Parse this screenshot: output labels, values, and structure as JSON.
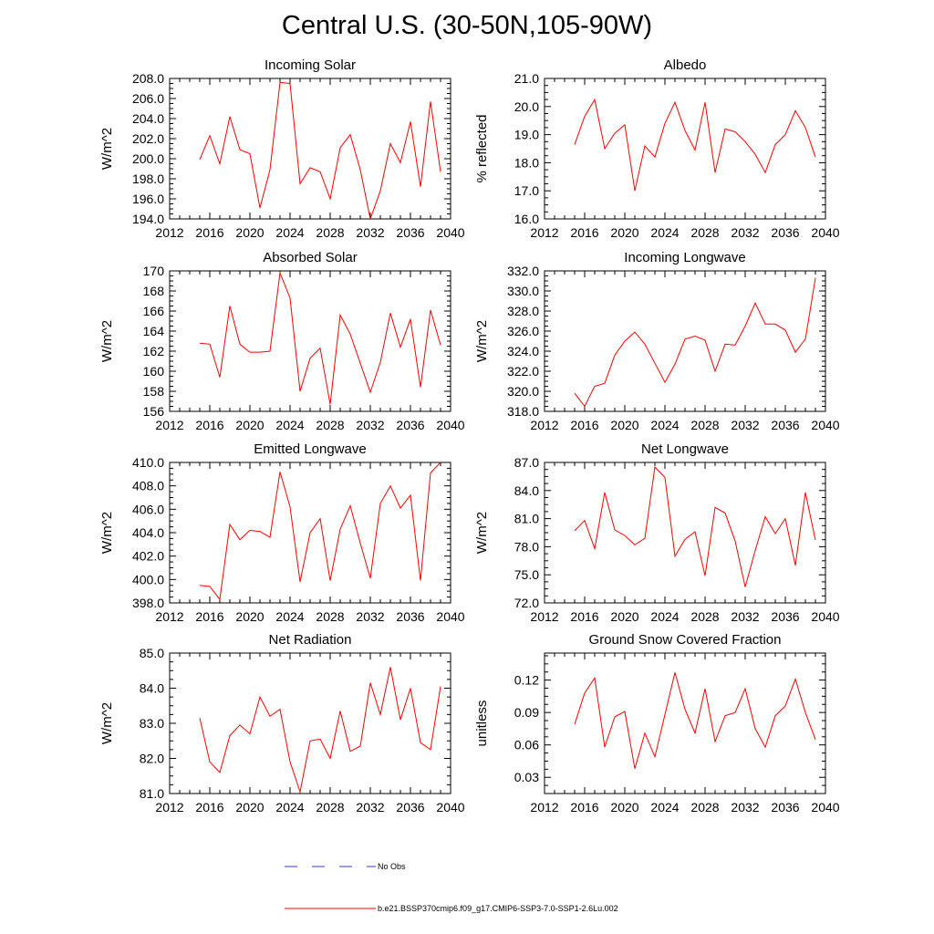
{
  "title": "Central U.S. (30-50N,105-90W)",
  "legend": [
    {
      "label": "No Obs",
      "color": "#3a3ad8",
      "dashed": true
    },
    {
      "label": "b.e21.BSSP370cmip6.f09_g17.CMIP6-SSP3-7.0-SSP1-2.6Lu.002",
      "color": "#ff0000",
      "dashed": false
    }
  ],
  "chart_data": [
    {
      "type": "line",
      "title": "Incoming Solar",
      "ylabel": "W/m^2",
      "xlim": [
        2012,
        2040
      ],
      "ylim": [
        194,
        208
      ],
      "xticks": [
        "2012",
        "2016",
        "2020",
        "2024",
        "2028",
        "2032",
        "2036",
        "2040"
      ],
      "yticks": [
        "194.0",
        "196.0",
        "198.0",
        "200.0",
        "202.0",
        "204.0",
        "206.0",
        "208.0"
      ],
      "x": [
        2015,
        2016,
        2017,
        2018,
        2019,
        2020,
        2021,
        2022,
        2023,
        2024,
        2025,
        2026,
        2027,
        2028,
        2029,
        2030,
        2031,
        2032,
        2033,
        2034,
        2035,
        2036,
        2037,
        2038,
        2039
      ],
      "series": [
        {
          "color": "#ff0000",
          "values": [
            199.9,
            202.3,
            199.5,
            204.2,
            200.9,
            200.5,
            195.1,
            198.9,
            207.6,
            207.5,
            197.5,
            199.1,
            198.7,
            196.0,
            201.1,
            202.4,
            198.9,
            194.0,
            196.8,
            201.5,
            199.6,
            203.7,
            197.2,
            205.7,
            198.7
          ]
        }
      ]
    },
    {
      "type": "line",
      "title": "Albedo",
      "ylabel": "% reflected",
      "xlim": [
        2012,
        2040
      ],
      "ylim": [
        16,
        21
      ],
      "xticks": [
        "2012",
        "2016",
        "2020",
        "2024",
        "2028",
        "2032",
        "2036",
        "2040"
      ],
      "yticks": [
        "16.0",
        "17.0",
        "18.0",
        "19.0",
        "20.0",
        "21.0"
      ],
      "x": [
        2015,
        2016,
        2017,
        2018,
        2019,
        2020,
        2021,
        2022,
        2023,
        2024,
        2025,
        2026,
        2027,
        2028,
        2029,
        2030,
        2031,
        2032,
        2033,
        2034,
        2035,
        2036,
        2037,
        2038,
        2039
      ],
      "series": [
        {
          "color": "#ff0000",
          "values": [
            18.65,
            19.65,
            20.25,
            18.5,
            19.05,
            19.35,
            17.0,
            18.6,
            18.2,
            19.4,
            20.15,
            19.15,
            18.45,
            20.15,
            17.65,
            19.2,
            19.1,
            18.75,
            18.3,
            17.65,
            18.65,
            19.0,
            19.85,
            19.25,
            18.2
          ]
        }
      ]
    },
    {
      "type": "line",
      "title": "Absorbed Solar",
      "ylabel": "W/m^2",
      "xlim": [
        2012,
        2040
      ],
      "ylim": [
        156,
        170
      ],
      "xticks": [
        "2012",
        "2016",
        "2020",
        "2024",
        "2028",
        "2032",
        "2036",
        "2040"
      ],
      "yticks": [
        "156",
        "158",
        "160",
        "162",
        "164",
        "166",
        "168",
        "170"
      ],
      "x": [
        2015,
        2016,
        2017,
        2018,
        2019,
        2020,
        2021,
        2022,
        2023,
        2024,
        2025,
        2026,
        2027,
        2028,
        2029,
        2030,
        2031,
        2032,
        2033,
        2034,
        2035,
        2036,
        2037,
        2038,
        2039
      ],
      "series": [
        {
          "color": "#ff0000",
          "values": [
            162.8,
            162.7,
            159.4,
            166.5,
            162.7,
            161.9,
            161.9,
            162.0,
            169.8,
            167.3,
            158.0,
            161.3,
            162.3,
            156.7,
            165.6,
            163.7,
            160.8,
            157.9,
            160.9,
            165.8,
            162.4,
            165.2,
            158.4,
            166.1,
            162.6
          ]
        }
      ]
    },
    {
      "type": "line",
      "title": "Incoming Longwave",
      "ylabel": "W/m^2",
      "xlim": [
        2012,
        2040
      ],
      "ylim": [
        318,
        332
      ],
      "xticks": [
        "2012",
        "2016",
        "2020",
        "2024",
        "2028",
        "2032",
        "2036",
        "2040"
      ],
      "yticks": [
        "318.0",
        "320.0",
        "322.0",
        "324.0",
        "326.0",
        "328.0",
        "330.0",
        "332.0"
      ],
      "x": [
        2015,
        2016,
        2017,
        2018,
        2019,
        2020,
        2021,
        2022,
        2023,
        2024,
        2025,
        2026,
        2027,
        2028,
        2029,
        2030,
        2031,
        2032,
        2033,
        2034,
        2035,
        2036,
        2037,
        2038,
        2039
      ],
      "series": [
        {
          "color": "#ff0000",
          "values": [
            319.8,
            318.5,
            320.5,
            320.8,
            323.6,
            325.0,
            325.9,
            324.7,
            322.8,
            320.9,
            322.7,
            325.2,
            325.5,
            325.1,
            322.0,
            324.7,
            324.6,
            326.5,
            328.8,
            326.7,
            326.7,
            326.1,
            323.9,
            325.2,
            331.3
          ]
        }
      ]
    },
    {
      "type": "line",
      "title": "Emitted Longwave",
      "ylabel": "W/m^2",
      "xlim": [
        2012,
        2040
      ],
      "ylim": [
        398,
        410
      ],
      "xticks": [
        "2012",
        "2016",
        "2020",
        "2024",
        "2028",
        "2032",
        "2036",
        "2040"
      ],
      "yticks": [
        "398.0",
        "400.0",
        "402.0",
        "404.0",
        "406.0",
        "408.0",
        "410.0"
      ],
      "x": [
        2015,
        2016,
        2017,
        2018,
        2019,
        2020,
        2021,
        2022,
        2023,
        2024,
        2025,
        2026,
        2027,
        2028,
        2029,
        2030,
        2031,
        2032,
        2033,
        2034,
        2035,
        2036,
        2037,
        2038,
        2039
      ],
      "series": [
        {
          "color": "#ff0000",
          "values": [
            399.5,
            399.4,
            398.3,
            404.7,
            403.4,
            404.2,
            404.1,
            403.6,
            409.2,
            406.2,
            399.8,
            404.0,
            405.2,
            399.9,
            404.3,
            406.3,
            403.1,
            400.1,
            406.5,
            408.0,
            406.1,
            407.2,
            399.9,
            409.1,
            410.0
          ]
        }
      ]
    },
    {
      "type": "line",
      "title": "Net Longwave",
      "ylabel": "W/m^2",
      "xlim": [
        2012,
        2040
      ],
      "ylim": [
        72,
        87
      ],
      "xticks": [
        "2012",
        "2016",
        "2020",
        "2024",
        "2028",
        "2032",
        "2036",
        "2040"
      ],
      "yticks": [
        "72.0",
        "75.0",
        "78.0",
        "81.0",
        "84.0",
        "87.0"
      ],
      "x": [
        2015,
        2016,
        2017,
        2018,
        2019,
        2020,
        2021,
        2022,
        2023,
        2024,
        2025,
        2026,
        2027,
        2028,
        2029,
        2030,
        2031,
        2032,
        2033,
        2034,
        2035,
        2036,
        2037,
        2038,
        2039
      ],
      "series": [
        {
          "color": "#ff0000",
          "values": [
            79.7,
            80.8,
            77.8,
            83.8,
            79.8,
            79.2,
            78.2,
            78.9,
            86.5,
            85.4,
            77.0,
            78.8,
            79.6,
            74.9,
            82.2,
            81.6,
            78.6,
            73.7,
            77.6,
            81.2,
            79.4,
            81.0,
            76.0,
            83.8,
            78.7
          ]
        }
      ]
    },
    {
      "type": "line",
      "title": "Net Radiation",
      "ylabel": "W/m^2",
      "xlim": [
        2012,
        2040
      ],
      "ylim": [
        81,
        85
      ],
      "xticks": [
        "2012",
        "2016",
        "2020",
        "2024",
        "2028",
        "2032",
        "2036",
        "2040"
      ],
      "yticks": [
        "81.0",
        "82.0",
        "83.0",
        "84.0",
        "85.0"
      ],
      "x": [
        2015,
        2016,
        2017,
        2018,
        2019,
        2020,
        2021,
        2022,
        2023,
        2024,
        2025,
        2026,
        2027,
        2028,
        2029,
        2030,
        2031,
        2032,
        2033,
        2034,
        2035,
        2036,
        2037,
        2038,
        2039
      ],
      "series": [
        {
          "color": "#ff0000",
          "values": [
            83.15,
            81.9,
            81.6,
            82.65,
            82.95,
            82.7,
            83.75,
            83.2,
            83.4,
            81.9,
            81.05,
            82.5,
            82.55,
            82.0,
            83.35,
            82.2,
            82.35,
            84.15,
            83.25,
            84.6,
            83.1,
            84.0,
            82.45,
            82.25,
            84.05
          ]
        }
      ]
    },
    {
      "type": "line",
      "title": "Ground Snow Covered Fraction",
      "ylabel": "unitless",
      "xlim": [
        2012,
        2040
      ],
      "ylim": [
        0.015,
        0.145
      ],
      "xticks": [
        "2012",
        "2016",
        "2020",
        "2024",
        "2028",
        "2032",
        "2036",
        "2040"
      ],
      "ytick_values": [
        0.03,
        0.06,
        0.09,
        0.12
      ],
      "yticks": [
        "0.03",
        "0.06",
        "0.09",
        "0.12"
      ],
      "x": [
        2015,
        2016,
        2017,
        2018,
        2019,
        2020,
        2021,
        2022,
        2023,
        2024,
        2025,
        2026,
        2027,
        2028,
        2029,
        2030,
        2031,
        2032,
        2033,
        2034,
        2035,
        2036,
        2037,
        2038,
        2039
      ],
      "series": [
        {
          "color": "#ff0000",
          "values": [
            0.079,
            0.108,
            0.122,
            0.058,
            0.086,
            0.091,
            0.038,
            0.071,
            0.049,
            0.088,
            0.127,
            0.093,
            0.071,
            0.112,
            0.063,
            0.087,
            0.09,
            0.112,
            0.075,
            0.058,
            0.087,
            0.096,
            0.121,
            0.09,
            0.065
          ]
        }
      ]
    }
  ]
}
